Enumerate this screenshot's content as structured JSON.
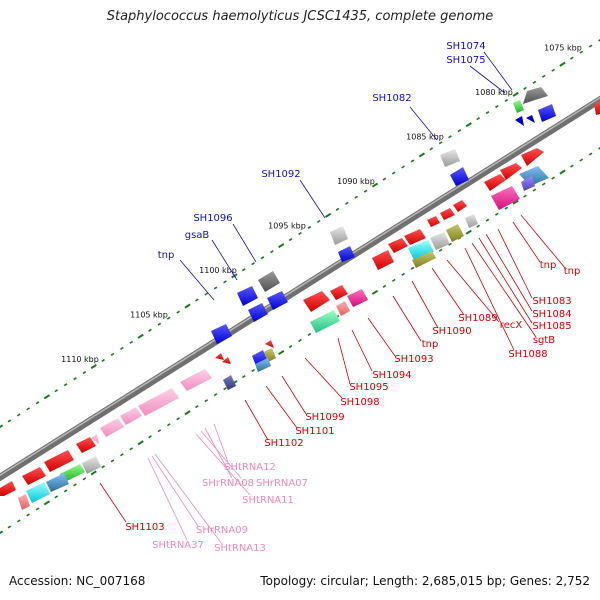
{
  "title": "Staphylococcus haemolyticus JCSC1435, complete genome",
  "footer": {
    "accession": "Accession: NC_007168",
    "summary": "Topology: circular; Length: 2,685,015 bp; Genes: 2,752"
  },
  "ticks": [
    {
      "label": "1075 kbp",
      "t": 0.955
    },
    {
      "label": "1080 kbp",
      "t": 0.84
    },
    {
      "label": "1085 kbp",
      "t": 0.725
    },
    {
      "label": "1090 kbp",
      "t": 0.61
    },
    {
      "label": "1095 kbp",
      "t": 0.495
    },
    {
      "label": "1100 kbp",
      "t": 0.38
    },
    {
      "label": "1105 kbp",
      "t": 0.265
    },
    {
      "label": "1110 kbp",
      "t": 0.15
    }
  ],
  "outer_labels": [
    {
      "text": "SH1074",
      "color": "blue"
    },
    {
      "text": "SH1075",
      "color": "blue"
    },
    {
      "text": "SH1082",
      "color": "blue"
    },
    {
      "text": "SH1092",
      "color": "blue"
    },
    {
      "text": "SH1096",
      "color": "blue"
    },
    {
      "text": "gsaB",
      "color": "blue"
    },
    {
      "text": "tnp",
      "color": "blue"
    }
  ],
  "inner_labels": [
    {
      "text": "tnp",
      "color": "red"
    },
    {
      "text": "tnp",
      "color": "red"
    },
    {
      "text": "SH1083",
      "color": "red"
    },
    {
      "text": "SH1084",
      "color": "red"
    },
    {
      "text": "SH1085",
      "color": "red"
    },
    {
      "text": "sgtB",
      "color": "red"
    },
    {
      "text": "SH1088",
      "color": "red"
    },
    {
      "text": "recX",
      "color": "red"
    },
    {
      "text": "SH1089",
      "color": "red"
    },
    {
      "text": "SH1090",
      "color": "red"
    },
    {
      "text": "tnp",
      "color": "red"
    },
    {
      "text": "SH1093",
      "color": "red"
    },
    {
      "text": "SH1094",
      "color": "red"
    },
    {
      "text": "SH1095",
      "color": "red"
    },
    {
      "text": "SH1098",
      "color": "red"
    },
    {
      "text": "SH1099",
      "color": "red"
    },
    {
      "text": "SH1101",
      "color": "red"
    },
    {
      "text": "SH1102",
      "color": "red"
    },
    {
      "text": "SHtRNA12",
      "color": "pink"
    },
    {
      "text": "SHrRNA08",
      "color": "pink"
    },
    {
      "text": "SHrRNA07",
      "color": "pink"
    },
    {
      "text": "SHtRNA11",
      "color": "pink"
    },
    {
      "text": "SH1103",
      "color": "red"
    },
    {
      "text": "SHrRNA09",
      "color": "pink"
    },
    {
      "text": "SHtRNA37",
      "color": "pink"
    },
    {
      "text": "SHtRNA13",
      "color": "pink"
    }
  ]
}
